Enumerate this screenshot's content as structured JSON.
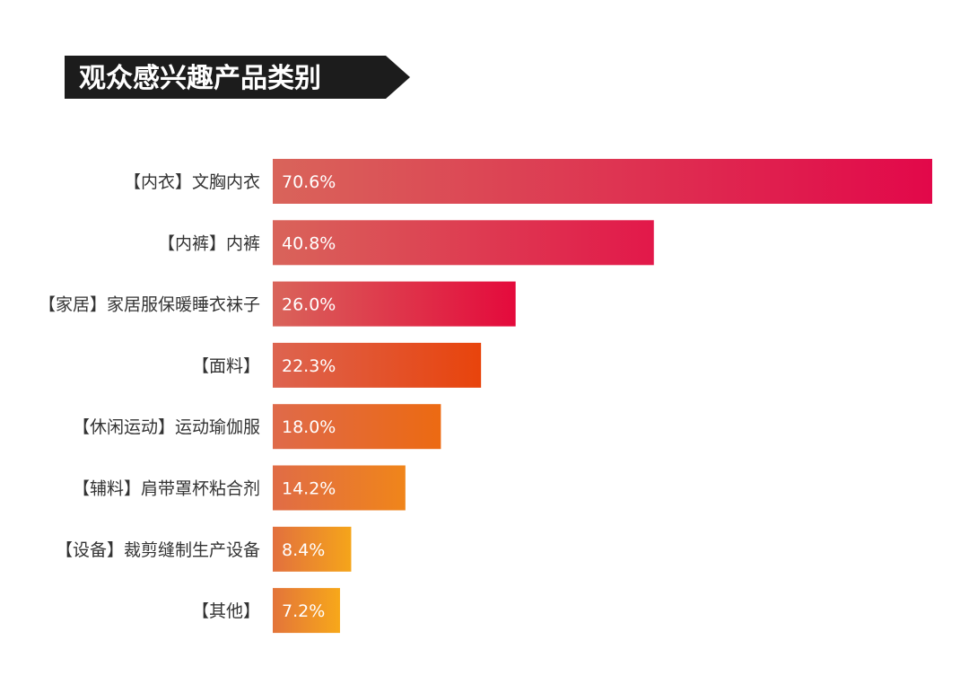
{
  "chart_data": {
    "type": "bar",
    "orientation": "horizontal",
    "title": "观众感兴趣产品类别",
    "categories": [
      "【内衣】文胸内衣",
      "【内裤】内裤",
      "【家居】家居服保暖睡衣袜子",
      "【面料】",
      "【休闲运动】运动瑜伽服",
      "【辅料】肩带罩杯粘合剂",
      "【设备】裁剪缝制生产设备",
      "【其他】"
    ],
    "values": [
      70.6,
      40.8,
      26.0,
      22.3,
      18.0,
      14.2,
      8.4,
      7.2
    ],
    "value_labels": [
      "70.6%",
      "40.8%",
      "26.0%",
      "22.3%",
      "18.0%",
      "14.2%",
      "8.4%",
      "7.2%"
    ],
    "unit": "%",
    "xlim": [
      0,
      70.6
    ],
    "grid": false,
    "legend": "none",
    "bar_gradients": [
      [
        "#d9645a",
        "#e2084a"
      ],
      [
        "#d9645a",
        "#e2184a"
      ],
      [
        "#d9645a",
        "#e40a3c"
      ],
      [
        "#dd6450",
        "#e8440c"
      ],
      [
        "#df6a4a",
        "#ec6a12"
      ],
      [
        "#e06c46",
        "#f0851a"
      ],
      [
        "#e2703e",
        "#f5a51a"
      ],
      [
        "#e3743a",
        "#f7a81a"
      ]
    ],
    "title_background": "#1c1c1c"
  }
}
